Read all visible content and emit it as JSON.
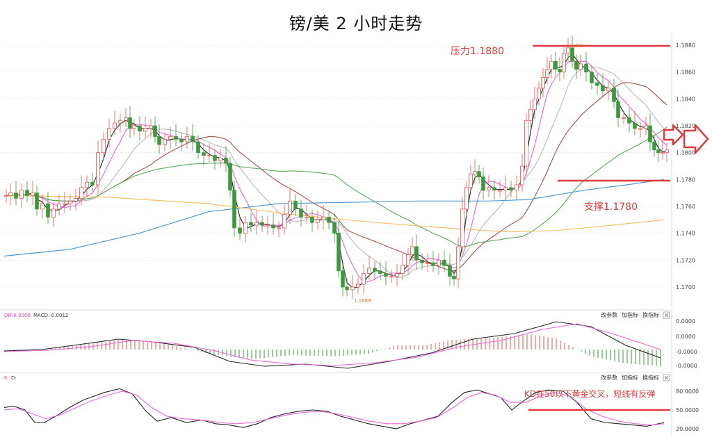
{
  "title": "镑/美 2 小时走势",
  "colors": {
    "up": "#e8534f",
    "down": "#3a9a3a",
    "ma_black": "#222222",
    "ma_pink": "#f064d4",
    "ma_lightgray": "#b8b8b8",
    "ma_brown": "#a0504a",
    "ma_green": "#5aa85a",
    "ma_blue": "#4a9ad8",
    "ma_orange": "#f5c060",
    "annotation": "#e3393c",
    "grid": "#e4e4e4"
  },
  "chart_data": [
    {
      "type": "candlestick",
      "title": "镑/美 2 小时走势",
      "y_ticks": [
        "1.1880",
        "1.1860",
        "1.1840",
        "1.1820",
        "1.1800",
        "1.1780",
        "1.1760",
        "1.1740",
        "1.1720",
        "1.1700"
      ],
      "ylim": [
        1.1685,
        1.1885
      ],
      "annotations": {
        "resistance_label": "压力1.1880",
        "resistance_value": 1.188,
        "support_label": "支撑1.1780",
        "support_value": 1.178,
        "low_label": "1.1689",
        "high_label": "1.1881"
      },
      "legend_icon": "arrow-right-icon"
    },
    {
      "type": "bar",
      "indicator": "MACD",
      "header": [
        "DIF:0.0000",
        "MACD:-0.0012"
      ],
      "buttons": [
        "改参数",
        "加指标",
        "换指标"
      ],
      "y_ticks": [
        "0.0000",
        "0.0000",
        "-0.0000",
        "-0.0000"
      ]
    },
    {
      "type": "line",
      "indicator": "KD",
      "header": [
        "K:",
        "D:"
      ],
      "buttons": [
        "改参数",
        "加指标",
        "换指标"
      ],
      "y_ticks": [
        "80.0000",
        "50.0000",
        "20.0000"
      ],
      "ylim": [
        10,
        95
      ],
      "annotation": "KD在50以下黄金交叉，短线有反弹",
      "line_value": 50
    }
  ]
}
